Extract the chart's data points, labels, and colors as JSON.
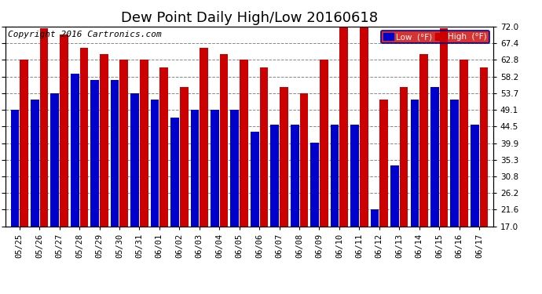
{
  "title": "Dew Point Daily High/Low 20160618",
  "copyright": "Copyright 2016 Cartronics.com",
  "legend_low": "Low  (°F)",
  "legend_high": "High  (°F)",
  "dates": [
    "05/25",
    "05/26",
    "05/27",
    "05/28",
    "05/29",
    "05/30",
    "05/31",
    "06/01",
    "06/02",
    "06/03",
    "06/04",
    "06/05",
    "06/06",
    "06/07",
    "06/08",
    "06/09",
    "06/10",
    "06/11",
    "06/12",
    "06/13",
    "06/14",
    "06/15",
    "06/16",
    "06/17"
  ],
  "low_values": [
    49.1,
    51.8,
    53.7,
    59.0,
    57.2,
    57.2,
    53.7,
    51.8,
    46.9,
    49.1,
    49.1,
    49.1,
    43.0,
    45.0,
    45.0,
    40.1,
    45.0,
    45.0,
    21.6,
    33.8,
    51.8,
    55.4,
    51.8,
    45.0
  ],
  "high_values": [
    62.8,
    71.6,
    69.8,
    66.2,
    64.4,
    62.8,
    62.8,
    60.8,
    55.4,
    66.2,
    64.4,
    62.8,
    60.8,
    55.4,
    53.6,
    62.8,
    73.4,
    73.4,
    51.8,
    55.4,
    64.4,
    71.6,
    62.8,
    60.8
  ],
  "yticks": [
    17.0,
    21.6,
    26.2,
    30.8,
    35.3,
    39.9,
    44.5,
    49.1,
    53.7,
    58.2,
    62.8,
    67.4,
    72.0
  ],
  "ymin": 17.0,
  "ymax": 72.0,
  "low_color": "#0000cc",
  "high_color": "#cc0000",
  "bg_color": "#ffffff",
  "grid_color": "#888888",
  "title_fontsize": 13,
  "copyright_fontsize": 8,
  "bar_width": 0.42,
  "bar_gap": 0.04
}
